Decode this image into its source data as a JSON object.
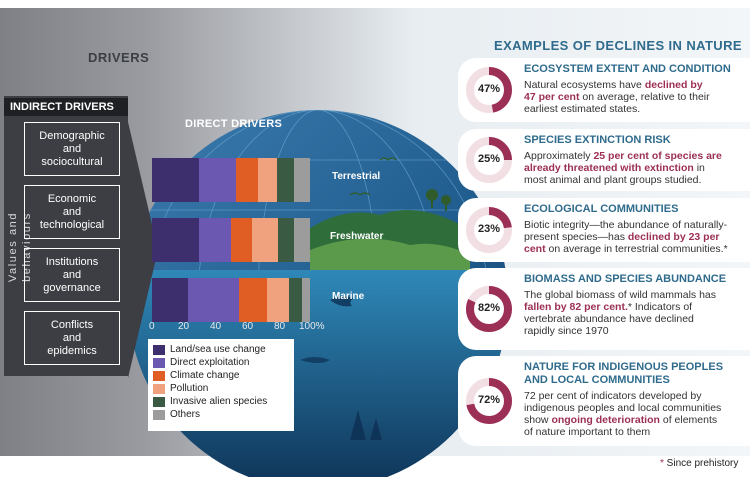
{
  "drivers_title": "DRIVERS",
  "indirect": {
    "header": "INDIRECT DRIVERS",
    "side_label": "Values and behaviours",
    "boxes": [
      [
        "Demographic",
        "and",
        "sociocultural"
      ],
      [
        "Economic",
        "and",
        "technological"
      ],
      [
        "Institutions",
        "and",
        "governance"
      ],
      [
        "Conflicts",
        "and",
        "epidemics"
      ]
    ]
  },
  "direct": {
    "title": "DIRECT DRIVERS",
    "realms": [
      "Terrestrial",
      "Freshwater",
      "Marine"
    ],
    "axis_ticks": [
      "0",
      "20",
      "40",
      "60",
      "80",
      "100%"
    ],
    "legend": [
      {
        "label": "Land/sea use change",
        "color": "#3d2e6e"
      },
      {
        "label": "Direct exploitation",
        "color": "#6b58b0"
      },
      {
        "label": "Climate change",
        "color": "#e05e23"
      },
      {
        "label": "Pollution",
        "color": "#f0a27e"
      },
      {
        "label": "Invasive alien species",
        "color": "#3b5a43"
      },
      {
        "label": "Others",
        "color": "#9c9c9c"
      }
    ],
    "bars": [
      {
        "realm": "Terrestrial",
        "values": [
          30,
          23,
          14,
          12,
          11,
          10
        ]
      },
      {
        "realm": "Freshwater",
        "values": [
          30,
          20,
          13,
          17,
          10,
          10
        ]
      },
      {
        "realm": "Marine",
        "values": [
          23,
          32,
          18,
          14,
          8,
          5
        ]
      }
    ]
  },
  "examples": {
    "title": "EXAMPLES OF DECLINES IN NATURE",
    "cards": [
      {
        "pct": "47%",
        "value": 47,
        "title": [
          "ECOSYSTEM EXTENT AND CONDITION"
        ],
        "lines": [
          [
            {
              "t": "Natural ecosystems have "
            },
            {
              "t": "declined by",
              "b": 1
            }
          ],
          [
            {
              "t": "47 per cent",
              "b": 1
            },
            {
              "t": " on average, relative to their"
            }
          ],
          [
            {
              "t": "earliest estimated states."
            }
          ]
        ]
      },
      {
        "pct": "25%",
        "value": 25,
        "title": [
          "SPECIES EXTINCTION RISK"
        ],
        "lines": [
          [
            {
              "t": "Approximately "
            },
            {
              "t": "25 per cent of species are",
              "b": 1
            }
          ],
          [
            {
              "t": "already threatened with extinction",
              "b": 1
            },
            {
              "t": " in"
            }
          ],
          [
            {
              "t": "most animal and plant groups studied."
            }
          ]
        ]
      },
      {
        "pct": "23%",
        "value": 23,
        "title": [
          "ECOLOGICAL COMMUNITIES"
        ],
        "lines": [
          [
            {
              "t": "Biotic integrity—the abundance of naturally-"
            }
          ],
          [
            {
              "t": "present species—has "
            },
            {
              "t": "declined by 23 per",
              "b": 1
            }
          ],
          [
            {
              "t": "cent",
              "b": 1
            },
            {
              "t": " on average in terrestrial communities.*"
            }
          ]
        ]
      },
      {
        "pct": "82%",
        "value": 82,
        "title": [
          "BIOMASS AND SPECIES ABUNDANCE"
        ],
        "lines": [
          [
            {
              "t": "The global biomass of wild mammals has"
            }
          ],
          [
            {
              "t": "fallen by 82 per cent.",
              "b": 1
            },
            {
              "t": "* Indicators of"
            }
          ],
          [
            {
              "t": "vertebrate abundance have declined"
            }
          ],
          [
            {
              "t": "rapidly since 1970"
            }
          ]
        ]
      },
      {
        "pct": "72%",
        "value": 72,
        "title": [
          "NATURE FOR INDIGENOUS PEOPLES",
          "AND LOCAL COMMUNITIES"
        ],
        "lines": [
          [
            {
              "t": "72 per cent of indicators developed by"
            }
          ],
          [
            {
              "t": "indigenous peoples and local communities"
            }
          ],
          [
            {
              "t": "show "
            },
            {
              "t": "ongoing deterioration",
              "b": 1
            },
            {
              "t": " of elements"
            }
          ],
          [
            {
              "t": "of nature important to them"
            }
          ]
        ]
      }
    ]
  },
  "footnote": {
    "star": "*",
    "text": " Since prehistory"
  },
  "colors": {
    "accent_blue": "#2f6b8c",
    "decline_red": "#9c2f55",
    "donut_track": "#f2dfe3"
  }
}
